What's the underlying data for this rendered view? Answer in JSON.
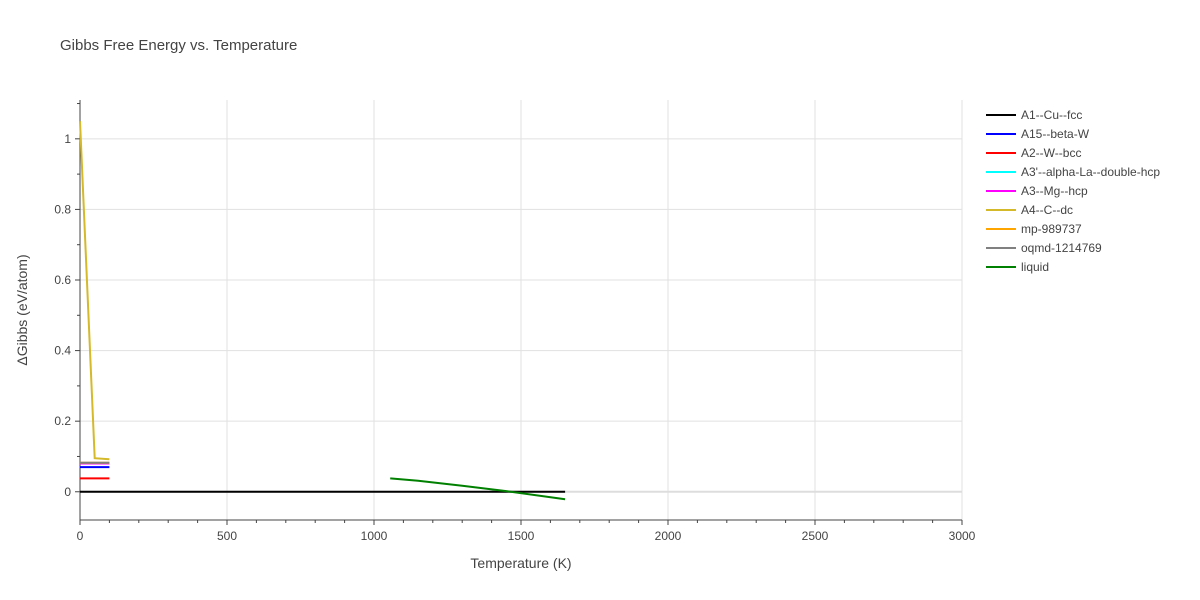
{
  "chart_data": {
    "type": "line",
    "title": "Gibbs Free Energy vs. Temperature",
    "xlabel": "Temperature (K)",
    "ylabel": "ΔGibbs (eV/atom)",
    "xlim": [
      0,
      3000
    ],
    "ylim": [
      -0.08,
      1.11
    ],
    "xticks": [
      0,
      500,
      1000,
      1500,
      2000,
      2500,
      3000
    ],
    "xtick_labels": [
      "0",
      "500",
      "1000",
      "1500",
      "2000",
      "2500",
      "3000"
    ],
    "yticks": [
      0,
      0.2,
      0.4,
      0.6,
      0.8,
      1
    ],
    "ytick_labels": [
      "0",
      "0.2",
      "0.4",
      "0.6",
      "0.8",
      "1"
    ],
    "grid": true,
    "legend_position": "right",
    "series": [
      {
        "name": "A1--Cu--fcc",
        "color": "#000000",
        "x": [
          0,
          1650
        ],
        "y": [
          0,
          0
        ]
      },
      {
        "name": "A15--beta-W",
        "color": "#0000ff",
        "x": [
          0,
          100
        ],
        "y": [
          0.07,
          0.07
        ]
      },
      {
        "name": "A2--W--bcc",
        "color": "#ff0000",
        "x": [
          0,
          100
        ],
        "y": [
          0.038,
          0.038
        ]
      },
      {
        "name": "A3'--alpha-La--double-hcp",
        "color": "#00ffff",
        "x": [
          0,
          100
        ],
        "y": [
          0.08,
          0.08
        ]
      },
      {
        "name": "A3--Mg--hcp",
        "color": "#ff00ff",
        "x": [
          0,
          100
        ],
        "y": [
          0.08,
          0.08
        ]
      },
      {
        "name": "A4--C--dc",
        "color": "#d4b92a",
        "x": [
          0,
          50,
          100
        ],
        "y": [
          1.05,
          0.095,
          0.092
        ]
      },
      {
        "name": "mp-989737",
        "color": "#ffa500",
        "x": [
          0,
          100
        ],
        "y": [
          0.082,
          0.082
        ]
      },
      {
        "name": "oqmd-1214769",
        "color": "#808080",
        "x": [
          0,
          100
        ],
        "y": [
          0.082,
          0.082
        ]
      },
      {
        "name": "liquid",
        "color": "#008000",
        "x": [
          1055,
          1150,
          1300,
          1450,
          1650
        ],
        "y": [
          0.038,
          0.031,
          0.017,
          0.002,
          -0.021
        ]
      }
    ]
  }
}
